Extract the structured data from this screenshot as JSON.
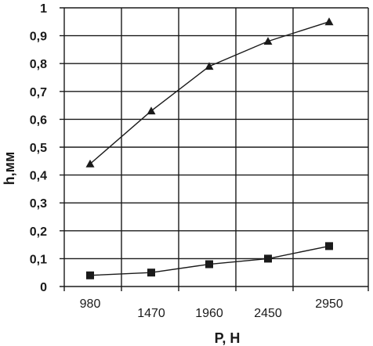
{
  "chart_data": {
    "type": "line",
    "xlabel": "P, H",
    "ylabel": "h,мм",
    "ylim": [
      0,
      1
    ],
    "y_ticks": [
      "0",
      "0,1",
      "0,2",
      "0,3",
      "0,4",
      "0,5",
      "0,6",
      "0,7",
      "0,8",
      "0,9",
      "1"
    ],
    "x_ticks": [
      "980",
      "1470",
      "1960",
      "2450",
      "2950"
    ],
    "grid": true,
    "series": [
      {
        "marker": "triangle",
        "x": [
          980,
          1470,
          1960,
          2450,
          2950
        ],
        "values": [
          0.44,
          0.63,
          0.79,
          0.88,
          0.95
        ]
      },
      {
        "marker": "square",
        "x": [
          980,
          1470,
          1960,
          2450,
          2950
        ],
        "values": [
          0.04,
          0.05,
          0.08,
          0.1,
          0.145
        ]
      }
    ],
    "colors": {
      "line": "#1a1a1a",
      "grid": "#1a1a1a"
    }
  }
}
